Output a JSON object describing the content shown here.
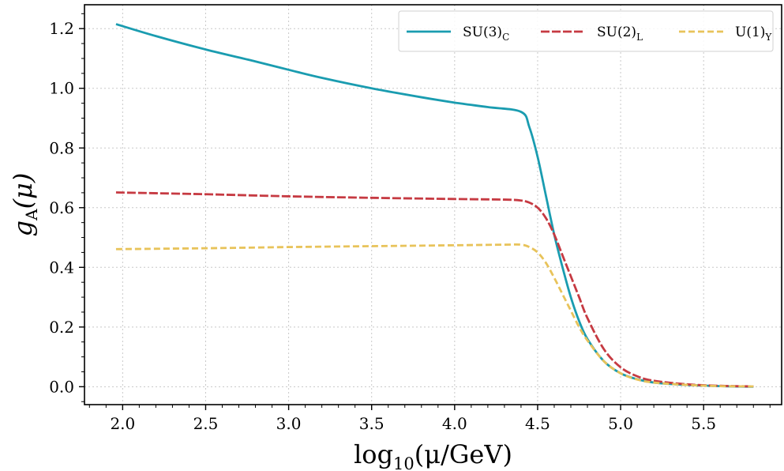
{
  "chart_data": {
    "type": "line",
    "xlabel": "log10(μ/GeV)",
    "xlabel_parts": {
      "main": "log",
      "sub": "10",
      "rest": "(μ/GeV)"
    },
    "ylabel": "gA(μ)",
    "ylabel_parts": {
      "main": "g",
      "sub": "A",
      "rest": "(μ)"
    },
    "xlim": [
      1.77,
      5.97
    ],
    "ylim": [
      -0.06,
      1.28
    ],
    "xticks": [
      2.0,
      2.5,
      3.0,
      3.5,
      4.0,
      4.5,
      5.0,
      5.5
    ],
    "xtick_labels": [
      "2.0",
      "2.5",
      "3.0",
      "3.5",
      "4.0",
      "4.5",
      "5.0",
      "5.5"
    ],
    "yticks": [
      0.0,
      0.2,
      0.4,
      0.6,
      0.8,
      1.0,
      1.2
    ],
    "ytick_labels": [
      "0.0",
      "0.2",
      "0.4",
      "0.6",
      "0.8",
      "1.0",
      "1.2"
    ],
    "grid": true,
    "legend_position": "top-right",
    "series": [
      {
        "name": "SU(3)C",
        "label_main": "SU(3)",
        "label_sub": "C",
        "color": "#1a9cb0",
        "dash": "solid",
        "x": [
          1.96,
          2.2,
          2.5,
          2.8,
          3.0,
          3.2,
          3.5,
          3.8,
          4.0,
          4.2,
          4.4,
          4.45,
          4.5,
          4.55,
          4.6,
          4.65,
          4.7,
          4.75,
          4.8,
          4.9,
          5.0,
          5.1,
          5.2,
          5.4,
          5.6,
          5.8
        ],
        "y": [
          1.215,
          1.175,
          1.13,
          1.09,
          1.062,
          1.035,
          1.0,
          0.97,
          0.952,
          0.937,
          0.921,
          0.87,
          0.77,
          0.64,
          0.51,
          0.4,
          0.3,
          0.22,
          0.16,
          0.085,
          0.045,
          0.025,
          0.014,
          0.006,
          0.002,
          0.0
        ]
      },
      {
        "name": "SU(2)L",
        "label_main": "SU(2)",
        "label_sub": "L",
        "color": "#c63a42",
        "dash": "long-dash",
        "x": [
          1.96,
          2.5,
          3.0,
          3.5,
          4.0,
          4.3,
          4.4,
          4.45,
          4.5,
          4.55,
          4.6,
          4.65,
          4.7,
          4.75,
          4.8,
          4.9,
          5.0,
          5.1,
          5.2,
          5.4,
          5.6,
          5.8
        ],
        "y": [
          0.651,
          0.645,
          0.638,
          0.633,
          0.629,
          0.627,
          0.624,
          0.617,
          0.6,
          0.565,
          0.51,
          0.44,
          0.37,
          0.3,
          0.23,
          0.125,
          0.065,
          0.035,
          0.02,
          0.008,
          0.003,
          0.001
        ]
      },
      {
        "name": "U(1)Y",
        "label_main": "U(1)",
        "label_sub": "Y",
        "color": "#e8c35a",
        "dash": "dashed",
        "x": [
          1.96,
          2.5,
          3.0,
          3.5,
          4.0,
          4.3,
          4.4,
          4.45,
          4.5,
          4.55,
          4.6,
          4.65,
          4.7,
          4.75,
          4.8,
          4.9,
          5.0,
          5.1,
          5.2,
          5.4,
          5.6,
          5.8
        ],
        "y": [
          0.461,
          0.464,
          0.468,
          0.471,
          0.474,
          0.476,
          0.476,
          0.468,
          0.45,
          0.415,
          0.365,
          0.31,
          0.255,
          0.2,
          0.155,
          0.085,
          0.045,
          0.024,
          0.014,
          0.006,
          0.002,
          0.001
        ]
      }
    ]
  }
}
